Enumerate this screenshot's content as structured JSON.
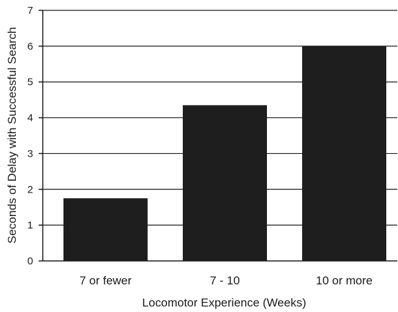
{
  "chart_data": {
    "type": "bar",
    "title": "",
    "xlabel": "Locomotor Experience (Weeks)",
    "ylabel": "Seconds of Delay with Successful Search",
    "categories": [
      "7 or fewer",
      "7 - 10",
      "10 or more"
    ],
    "values": [
      1.75,
      4.35,
      6.0
    ],
    "ylim": [
      0,
      7
    ],
    "yticks": [
      "0",
      "1",
      "2",
      "3",
      "4",
      "5",
      "6",
      "7"
    ],
    "grid": "horizontal",
    "bar_color": "#1e1e1e"
  }
}
